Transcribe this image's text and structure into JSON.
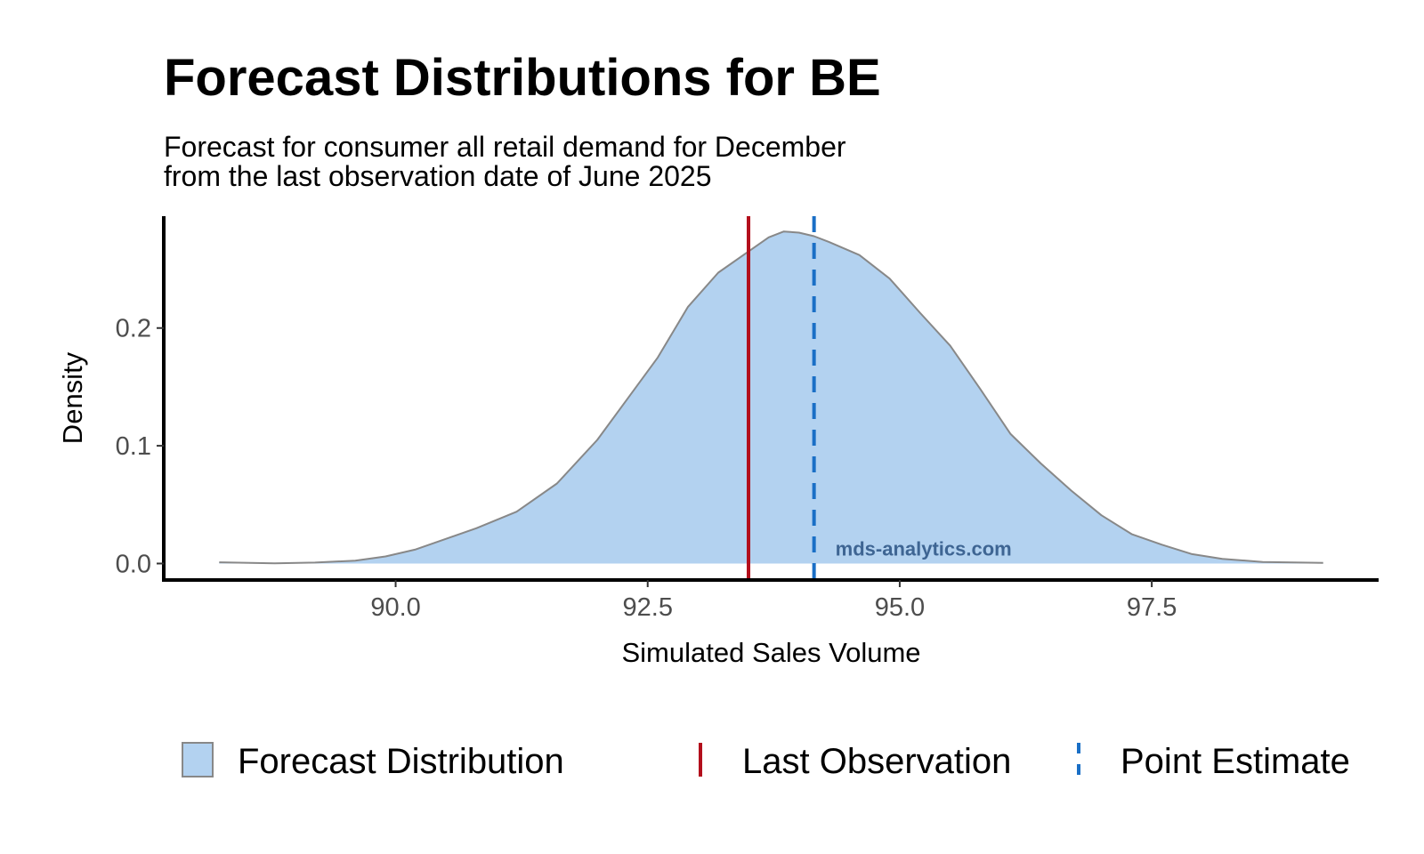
{
  "chart_data": {
    "type": "area",
    "title": "Forecast Distributions for BE",
    "subtitle": [
      "Forecast for consumer all retail demand for December",
      "from the last observation date of June 2025"
    ],
    "xlabel": "Simulated Sales Volume",
    "ylabel": "Density",
    "xlim": [
      87.7,
      99.75
    ],
    "ylim": [
      -0.014,
      0.295
    ],
    "x_ticks": [
      90.0,
      92.5,
      95.0,
      97.5
    ],
    "x_tick_labels": [
      "90.0",
      "92.5",
      "95.0",
      "97.5"
    ],
    "y_ticks": [
      0.0,
      0.1,
      0.2
    ],
    "y_tick_labels": [
      "0.0",
      "0.1",
      "0.2"
    ],
    "grid": false,
    "legend_position": "bottom",
    "watermark": "mds-analytics.com",
    "series": [
      {
        "name": "Forecast Distribution",
        "kind": "density",
        "x": [
          88.25,
          88.8,
          89.2,
          89.6,
          89.9,
          90.2,
          90.5,
          90.8,
          91.2,
          91.6,
          92.0,
          92.3,
          92.6,
          92.9,
          93.2,
          93.5,
          93.7,
          93.85,
          94.0,
          94.15,
          94.3,
          94.6,
          94.9,
          95.2,
          95.5,
          95.8,
          96.1,
          96.4,
          96.7,
          97.0,
          97.3,
          97.6,
          97.9,
          98.2,
          98.6,
          99.2
        ],
        "y": [
          0.001,
          0.0002,
          0.0008,
          0.0025,
          0.006,
          0.012,
          0.021,
          0.03,
          0.044,
          0.068,
          0.105,
          0.14,
          0.175,
          0.218,
          0.247,
          0.265,
          0.277,
          0.282,
          0.281,
          0.278,
          0.273,
          0.262,
          0.242,
          0.213,
          0.185,
          0.148,
          0.11,
          0.085,
          0.062,
          0.041,
          0.025,
          0.016,
          0.008,
          0.004,
          0.0013,
          0.0005
        ],
        "fill": "#b3d2f0",
        "stroke": "#888888"
      },
      {
        "name": "Last Observation",
        "kind": "vline",
        "value": 93.5,
        "color": "#b30f1c",
        "style": "solid"
      },
      {
        "name": "Point Estimate",
        "kind": "vline",
        "value": 94.15,
        "color": "#1a6fc6",
        "style": "dashed"
      }
    ]
  }
}
